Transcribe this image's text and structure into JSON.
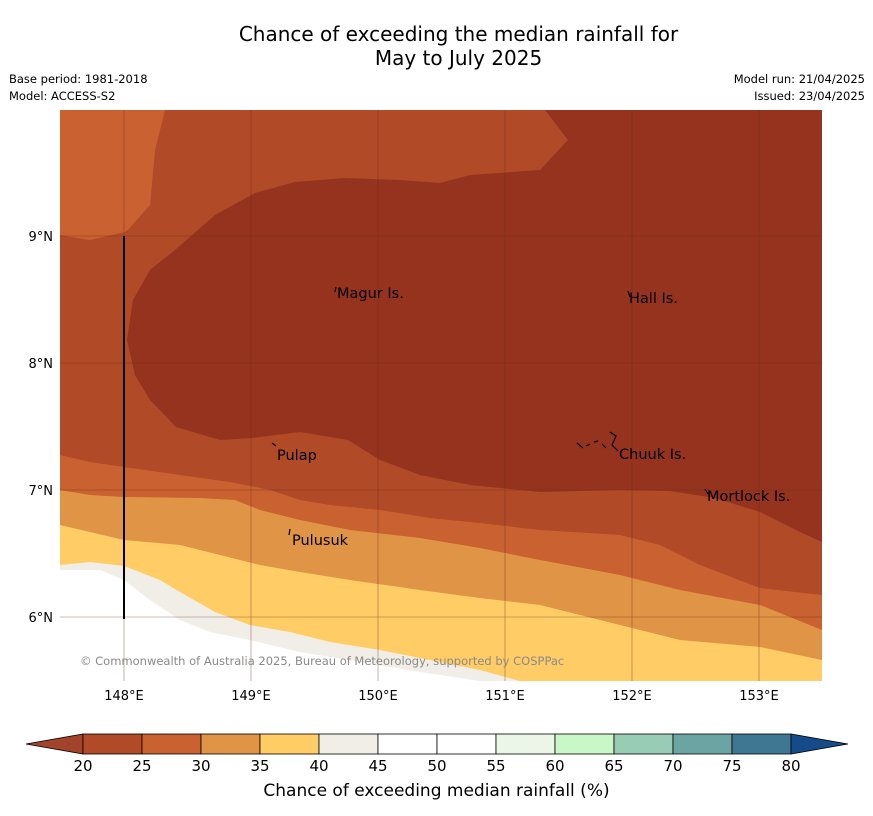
{
  "title": {
    "line1": "Chance of exceeding the median rainfall for",
    "line2": "May to July 2025"
  },
  "meta": {
    "base_period": "Base period: 1981-2018",
    "model": "Model: ACCESS-S2",
    "model_run": "Model run: 21/04/2025",
    "issued": "Issued: 23/04/2025"
  },
  "map": {
    "x_ticks": [
      "148°E",
      "149°E",
      "150°E",
      "151°E",
      "152°E",
      "153°E"
    ],
    "y_ticks": [
      "9°N",
      "8°N",
      "7°N",
      "6°N"
    ],
    "places": [
      "Magur Is.",
      "Hall Is.",
      "Pulap",
      "Chuuk Is.",
      "Mortlock Is.",
      "Pulusuk"
    ],
    "copyright": "© Commonwealth of Australia 2025, Bureau of Meteorology, supported by COSPPac"
  },
  "colorbar": {
    "ticks": [
      "20",
      "25",
      "30",
      "35",
      "40",
      "45",
      "50",
      "55",
      "60",
      "65",
      "70",
      "75",
      "80"
    ],
    "label": "Chance of exceeding median rainfall (%)",
    "colors": {
      "below_20": "#a3432c",
      "20_25": "#b04a27",
      "25_30": "#c96131",
      "30_35": "#e09446",
      "35_40": "#ffcc66",
      "40_45": "#f1ede7",
      "45_50": "#ffffff",
      "50_55": "#ffffff",
      "55_60": "#ebf6e9",
      "60_65": "#c8f7c8",
      "65_70": "#99ccb4",
      "70_75": "#6ca3a3",
      "75_80": "#3f7793",
      "above_80": "#154b8a"
    },
    "map_below_20": "#95331f"
  }
}
